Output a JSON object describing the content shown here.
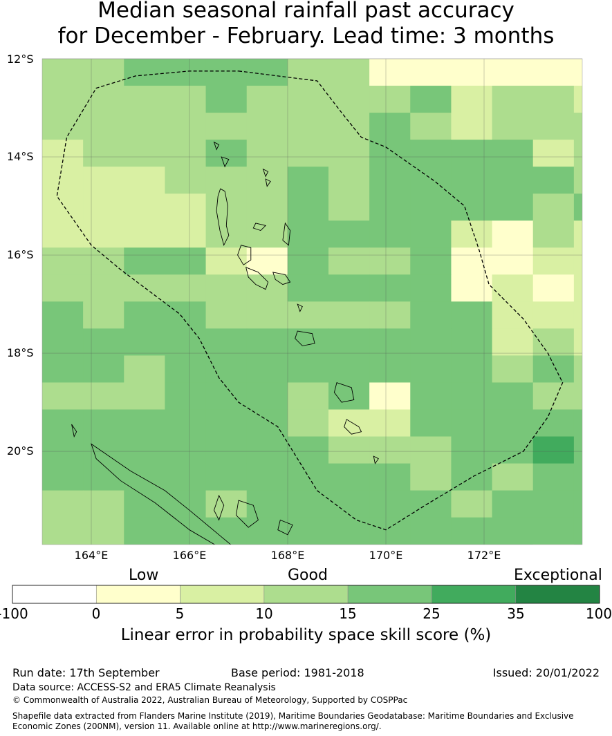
{
  "title": {
    "line1": "Median seasonal rainfall past accuracy",
    "line2": "for December - February. Lead time: 3 months"
  },
  "map": {
    "lat_ticks": [
      "12°S",
      "14°S",
      "16°S",
      "18°S",
      "20°S"
    ],
    "lon_ticks": [
      "164°E",
      "166°E",
      "168°E",
      "170°E",
      "172°E"
    ],
    "lon_range": [
      163.0,
      174.0
    ],
    "lat_range": [
      -21.9,
      -12.0
    ],
    "grid_lon_start": 163.0,
    "grid_lat_start": -12.0,
    "grid_cell_deg": 0.833,
    "skill_grid": [
      [
        3,
        3,
        4,
        4,
        4,
        4,
        3,
        3,
        1,
        1,
        1,
        1,
        1,
        1
      ],
      [
        3,
        3,
        3,
        3,
        4,
        3,
        3,
        3,
        3,
        4,
        2,
        3,
        3,
        2,
        0
      ],
      [
        3,
        3,
        3,
        3,
        3,
        3,
        3,
        3,
        4,
        3,
        2,
        3,
        3,
        3,
        3
      ],
      [
        2,
        3,
        3,
        3,
        4,
        3,
        3,
        3,
        4,
        4,
        4,
        4,
        2,
        3,
        3
      ],
      [
        2,
        2,
        2,
        3,
        3,
        3,
        4,
        3,
        4,
        4,
        4,
        4,
        4,
        3,
        3
      ],
      [
        2,
        2,
        2,
        2,
        3,
        3,
        4,
        3,
        4,
        4,
        4,
        4,
        3,
        4,
        3
      ],
      [
        2,
        2,
        2,
        2,
        3,
        3,
        4,
        4,
        4,
        4,
        2,
        1,
        3,
        2,
        4
      ],
      [
        3,
        3,
        4,
        4,
        2,
        1,
        4,
        3,
        3,
        4,
        1,
        1,
        2,
        2,
        1
      ],
      [
        3,
        3,
        3,
        3,
        3,
        3,
        4,
        4,
        4,
        4,
        1,
        2,
        1,
        2,
        1
      ],
      [
        4,
        3,
        4,
        4,
        3,
        3,
        3,
        3,
        3,
        4,
        4,
        2,
        2,
        2,
        2
      ],
      [
        4,
        4,
        4,
        4,
        4,
        4,
        4,
        4,
        4,
        4,
        4,
        2,
        3,
        2,
        2
      ],
      [
        4,
        4,
        3,
        4,
        4,
        4,
        4,
        4,
        4,
        4,
        4,
        3,
        4,
        3,
        2
      ],
      [
        3,
        3,
        3,
        4,
        4,
        4,
        3,
        4,
        1,
        4,
        4,
        4,
        3,
        3,
        2
      ],
      [
        4,
        4,
        4,
        4,
        4,
        4,
        3,
        2,
        2,
        4,
        4,
        4,
        4,
        4,
        3
      ],
      [
        4,
        4,
        4,
        4,
        4,
        4,
        4,
        3,
        3,
        3,
        4,
        4,
        5,
        4,
        3
      ],
      [
        4,
        4,
        4,
        4,
        4,
        4,
        4,
        4,
        4,
        3,
        4,
        3,
        4,
        4,
        3
      ],
      [
        3,
        3,
        4,
        4,
        3,
        4,
        4,
        4,
        4,
        4,
        3,
        4,
        4,
        4,
        4
      ],
      [
        3,
        3,
        4,
        4,
        4,
        4,
        4,
        4,
        4,
        4,
        4,
        4,
        4,
        4,
        4
      ],
      [
        3,
        3,
        4,
        4,
        4,
        4,
        4,
        4,
        4,
        4,
        4,
        4,
        3,
        4,
        4
      ]
    ],
    "eez_boundary": [
      [
        167.0,
        -12.25
      ],
      [
        168.6,
        -12.45
      ],
      [
        169.1,
        -13.1
      ],
      [
        169.5,
        -13.6
      ],
      [
        170.0,
        -13.8
      ],
      [
        171.0,
        -14.5
      ],
      [
        171.6,
        -15.0
      ],
      [
        171.9,
        -15.9
      ],
      [
        172.1,
        -16.6
      ],
      [
        172.8,
        -17.3
      ],
      [
        173.3,
        -18.0
      ],
      [
        173.6,
        -18.6
      ],
      [
        173.3,
        -19.3
      ],
      [
        172.8,
        -20.0
      ],
      [
        171.8,
        -20.5
      ],
      [
        170.8,
        -21.1
      ],
      [
        170.0,
        -21.6
      ],
      [
        169.4,
        -21.4
      ],
      [
        168.6,
        -20.8
      ],
      [
        167.8,
        -19.5
      ],
      [
        167.0,
        -19.0
      ],
      [
        166.6,
        -18.5
      ],
      [
        166.2,
        -17.7
      ],
      [
        165.8,
        -17.2
      ],
      [
        164.6,
        -16.3
      ],
      [
        164.0,
        -15.8
      ],
      [
        163.3,
        -14.8
      ],
      [
        163.5,
        -13.6
      ],
      [
        164.1,
        -12.6
      ],
      [
        164.9,
        -12.35
      ],
      [
        166.0,
        -12.25
      ]
    ],
    "islands": [
      [
        [
          166.63,
          -14.65
        ],
        [
          166.72,
          -14.7
        ],
        [
          166.78,
          -15.0
        ],
        [
          166.75,
          -15.4
        ],
        [
          166.8,
          -15.6
        ],
        [
          166.7,
          -15.8
        ],
        [
          166.62,
          -15.5
        ],
        [
          166.55,
          -15.1
        ],
        [
          166.58,
          -14.8
        ]
      ],
      [
        [
          167.05,
          -15.8
        ],
        [
          167.25,
          -15.85
        ],
        [
          167.25,
          -16.1
        ],
        [
          167.1,
          -16.2
        ],
        [
          166.98,
          -16.0
        ]
      ],
      [
        [
          167.15,
          -16.25
        ],
        [
          167.4,
          -16.35
        ],
        [
          167.6,
          -16.55
        ],
        [
          167.55,
          -16.7
        ],
        [
          167.35,
          -16.6
        ],
        [
          167.2,
          -16.45
        ]
      ],
      [
        [
          167.7,
          -16.35
        ],
        [
          167.95,
          -16.4
        ],
        [
          168.05,
          -16.55
        ],
        [
          167.9,
          -16.6
        ],
        [
          167.75,
          -16.5
        ]
      ],
      [
        [
          167.95,
          -15.35
        ],
        [
          168.05,
          -15.5
        ],
        [
          168.02,
          -15.8
        ],
        [
          167.9,
          -15.7
        ]
      ],
      [
        [
          167.35,
          -15.35
        ],
        [
          167.55,
          -15.4
        ],
        [
          167.45,
          -15.5
        ],
        [
          167.3,
          -15.45
        ]
      ],
      [
        [
          168.2,
          -17.55
        ],
        [
          168.5,
          -17.6
        ],
        [
          168.55,
          -17.8
        ],
        [
          168.3,
          -17.85
        ],
        [
          168.15,
          -17.7
        ]
      ],
      [
        [
          169.0,
          -18.6
        ],
        [
          169.3,
          -18.7
        ],
        [
          169.35,
          -18.95
        ],
        [
          169.1,
          -19.0
        ],
        [
          168.95,
          -18.8
        ]
      ],
      [
        [
          169.2,
          -19.35
        ],
        [
          169.45,
          -19.5
        ],
        [
          169.5,
          -19.6
        ],
        [
          169.3,
          -19.65
        ],
        [
          169.15,
          -19.5
        ]
      ],
      [
        [
          168.2,
          -17.0
        ],
        [
          168.3,
          -17.05
        ],
        [
          168.25,
          -17.15
        ]
      ],
      [
        [
          166.5,
          -13.7
        ],
        [
          166.6,
          -13.75
        ],
        [
          166.55,
          -13.85
        ]
      ],
      [
        [
          166.65,
          -14.0
        ],
        [
          166.8,
          -14.05
        ],
        [
          166.72,
          -14.2
        ]
      ],
      [
        [
          167.5,
          -14.25
        ],
        [
          167.6,
          -14.3
        ],
        [
          167.55,
          -14.4
        ]
      ],
      [
        [
          167.55,
          -14.45
        ],
        [
          167.65,
          -14.5
        ],
        [
          167.58,
          -14.6
        ]
      ],
      [
        [
          169.75,
          -20.1
        ],
        [
          169.85,
          -20.15
        ],
        [
          169.78,
          -20.25
        ]
      ],
      [
        [
          164.0,
          -19.85
        ],
        [
          164.8,
          -20.4
        ],
        [
          165.5,
          -20.8
        ],
        [
          166.0,
          -21.2
        ],
        [
          166.6,
          -21.7
        ],
        [
          166.9,
          -21.95
        ],
        [
          166.6,
          -21.95
        ],
        [
          166.0,
          -21.6
        ],
        [
          165.3,
          -21.05
        ],
        [
          164.6,
          -20.6
        ],
        [
          164.1,
          -20.15
        ]
      ],
      [
        [
          166.6,
          -20.9
        ],
        [
          166.7,
          -21.1
        ],
        [
          166.6,
          -21.4
        ],
        [
          166.5,
          -21.2
        ]
      ],
      [
        [
          167.85,
          -21.4
        ],
        [
          168.1,
          -21.5
        ],
        [
          168.0,
          -21.7
        ],
        [
          167.8,
          -21.6
        ]
      ],
      [
        [
          167.0,
          -21.0
        ],
        [
          167.3,
          -21.1
        ],
        [
          167.4,
          -21.4
        ],
        [
          167.2,
          -21.55
        ],
        [
          166.95,
          -21.3
        ]
      ],
      [
        [
          163.6,
          -19.45
        ],
        [
          163.7,
          -19.6
        ],
        [
          163.65,
          -19.7
        ]
      ]
    ]
  },
  "colorbar": {
    "category_labels": [
      "Low",
      "Good",
      "Exceptional"
    ],
    "ticks": [
      "-100",
      "0",
      "5",
      "10",
      "15",
      "25",
      "35",
      "100"
    ],
    "colors": [
      "#ffffff",
      "#ffffcc",
      "#d9f0a3",
      "#addd8e",
      "#78c679",
      "#41ab5d",
      "#238443"
    ],
    "title": "Linear error in probability space skill score (%)"
  },
  "footer": {
    "run_date": "Run date: 17th September",
    "base_period": "Base period: 1981-2018",
    "issued": "Issued: 20/01/2022",
    "data_source": "Data source: ACCESS-S2 and ERA5 Climate Reanalysis",
    "copyright": "© Commonwealth of Australia 2022, Australian Bureau of Meteorology, Supported by COSPPac",
    "shapefile_line1": "Shapefile data extracted from Flanders Marine Institute (2019), Maritime Boundaries Geodatabase: Maritime Boundaries and Exclusive",
    "shapefile_line2": "Economic Zones (200NM), version 11. Available online at http://www.marineregions.org/."
  }
}
